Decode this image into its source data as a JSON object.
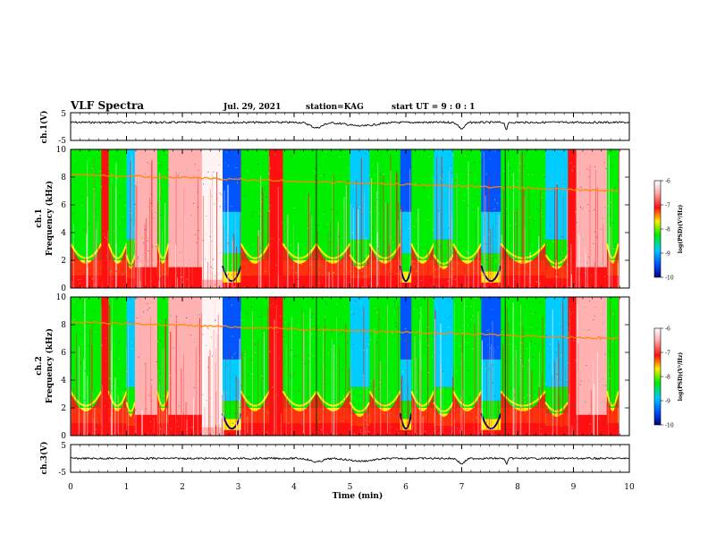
{
  "header": {
    "title": "VLF Spectra",
    "date": "Jul. 29, 2021",
    "station": "station=KAG",
    "start": "start UT =  9 : 0 : 1"
  },
  "chart_data": [
    {
      "type": "line",
      "panel": "ch1-waveform",
      "ylabel": "ch.1(V)",
      "yticks": [
        "5",
        "-5"
      ],
      "ylim": [
        -5,
        5
      ],
      "xlim": [
        0,
        10
      ],
      "trace_level_V": 1.5
    },
    {
      "type": "heatmap",
      "panel": "ch1-spectrogram",
      "ylabel": "ch.1\nFrequency (kHz)",
      "yticks": [
        "0",
        "2",
        "4",
        "6",
        "8",
        "10"
      ],
      "ylim": [
        0,
        10
      ],
      "xlim": [
        0,
        10
      ],
      "colorbar": {
        "label": "log(PSD)(V²/Hz)",
        "ticks": [
          "-6",
          "-7",
          "-8",
          "-9",
          "-10"
        ],
        "range": [
          -10,
          -6
        ]
      },
      "line_emission_kHz": [
        8.2,
        7.0
      ]
    },
    {
      "type": "heatmap",
      "panel": "ch2-spectrogram",
      "ylabel": "ch.2\nFrequency (kHz)",
      "yticks": [
        "0",
        "2",
        "4",
        "6",
        "8",
        "10"
      ],
      "ylim": [
        0,
        10
      ],
      "xlim": [
        0,
        10
      ],
      "colorbar": {
        "label": "log(PSD)(V²/Hz)",
        "ticks": [
          "-6",
          "-7",
          "-8",
          "-9",
          "-10"
        ],
        "range": [
          -10,
          -6
        ]
      },
      "line_emission_kHz": [
        8.2,
        7.0
      ]
    },
    {
      "type": "line",
      "panel": "ch3-waveform",
      "ylabel": "ch.3(V)",
      "yticks": [
        "5",
        "-5"
      ],
      "ylim": [
        -5,
        5
      ],
      "xlim": [
        0,
        10
      ],
      "trace_level_V": 0,
      "xlabel": "Time (min)",
      "xticks": [
        "0",
        "1",
        "2",
        "3",
        "4",
        "5",
        "6",
        "7",
        "8",
        "9",
        "10"
      ]
    }
  ],
  "colors": {
    "dark_blue": "#000080",
    "blue": "#0055ff",
    "cyan": "#00ccff",
    "green": "#00ee00",
    "yellow": "#ffee00",
    "orange": "#ff8800",
    "red": "#ff1010",
    "pink": "#ffb0b0"
  }
}
